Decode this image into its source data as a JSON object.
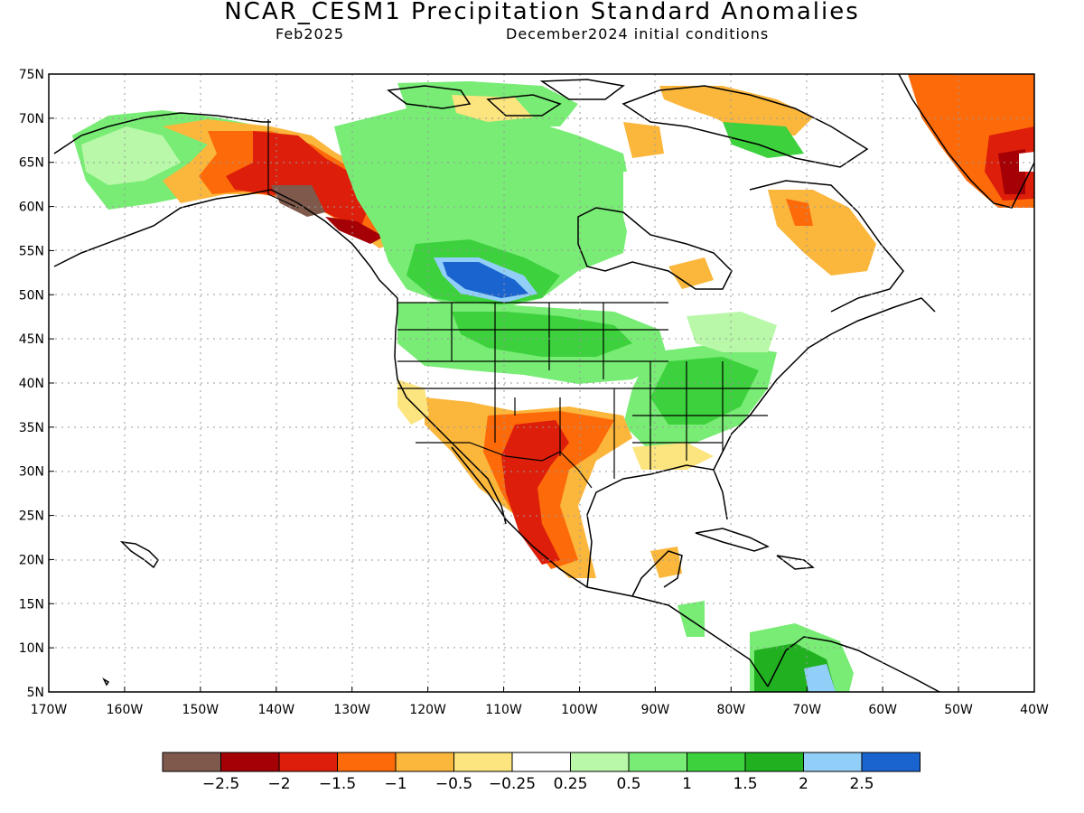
{
  "title": "NCAR_CESM1 Precipitation Standard Anomalies",
  "valid_month": "Feb2025",
  "initial_conditions": "December2024 initial conditions",
  "map": {
    "lon_range": [
      -170,
      -40
    ],
    "lat_range": [
      5,
      75
    ],
    "lon_ticks": [
      "170W",
      "160W",
      "150W",
      "140W",
      "130W",
      "120W",
      "110W",
      "100W",
      "90W",
      "80W",
      "70W",
      "60W",
      "50W",
      "40W"
    ],
    "lat_ticks": [
      "5N",
      "10N",
      "15N",
      "20N",
      "25N",
      "30N",
      "35N",
      "40N",
      "45N",
      "50N",
      "55N",
      "60N",
      "65N",
      "70N",
      "75N"
    ],
    "grid": true
  },
  "colorbar": {
    "colors": [
      "#7f5a4c",
      "#a50005",
      "#dd1e0a",
      "#fd6a0a",
      "#fbb63c",
      "#fce47f",
      "#ffffff",
      "#b8f8a8",
      "#78ec75",
      "#3dd13d",
      "#20b020",
      "#92cff8",
      "#1a64cf"
    ],
    "labels": [
      "-2.5",
      "-2",
      "-1.5",
      "-1",
      "-0.5",
      "-0.25",
      "0.25",
      "0.5",
      "1",
      "1.5",
      "2",
      "2.5"
    ]
  },
  "anomaly_regions": [
    {
      "name": "south-central US / northern Mexico dry",
      "color": "#dd1e0a"
    },
    {
      "name": "southern Alaska / BC coast dry",
      "color": "#a50005"
    },
    {
      "name": "Alberta / Saskatchewan wet",
      "color": "#1a64cf"
    },
    {
      "name": "Greenland SE coast dry",
      "color": "#fd6a0a"
    },
    {
      "name": "northern Colombia wet",
      "color": "#92cff8"
    }
  ]
}
